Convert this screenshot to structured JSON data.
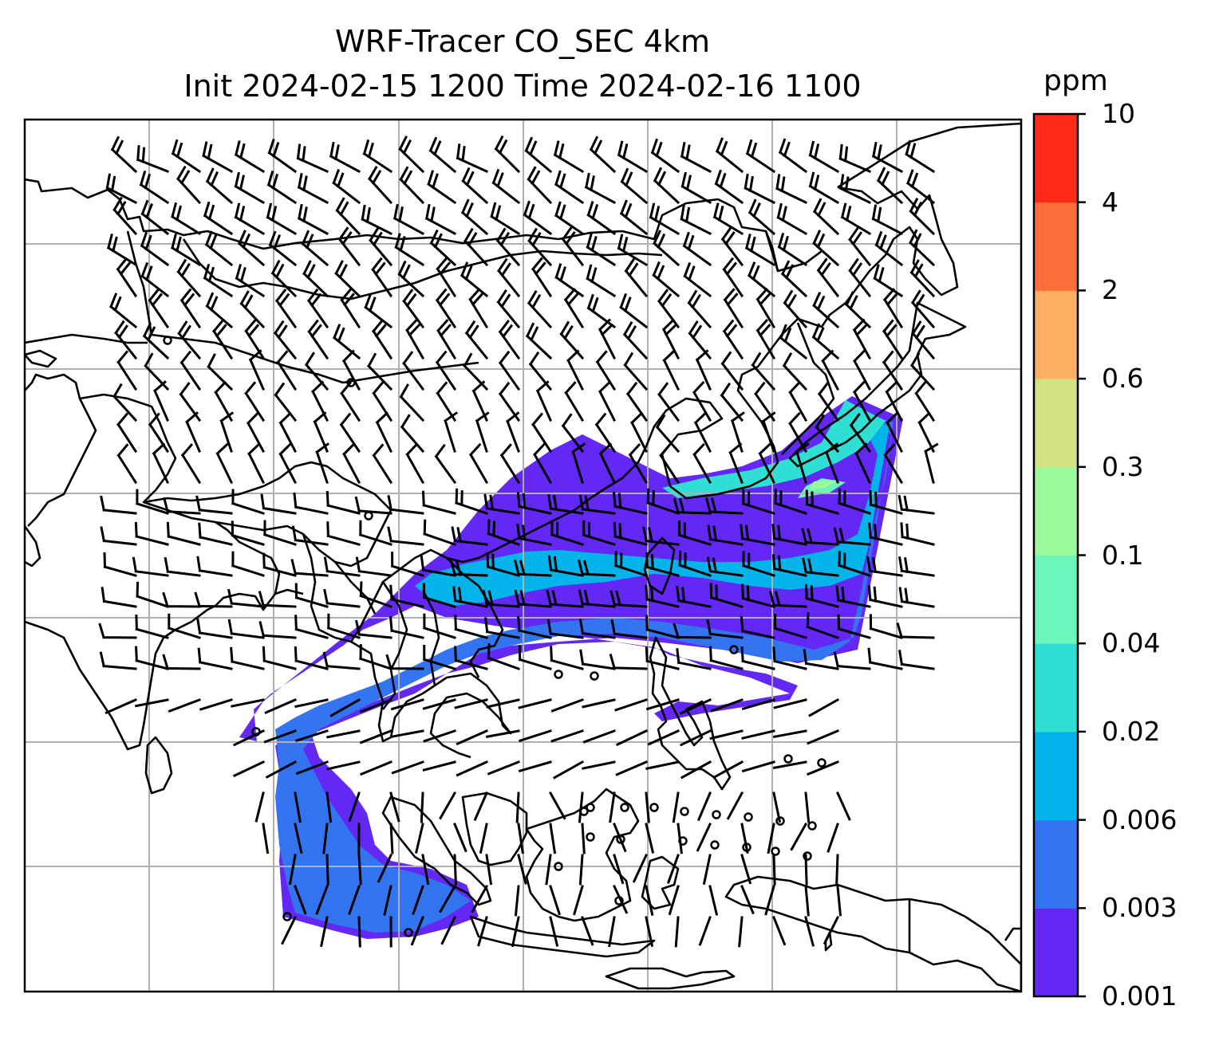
{
  "figure": {
    "title_line1": "WRF-Tracer CO_SEC 4km",
    "title_line2": "Init 2024-02-15 1200 Time 2024-02-16 1100"
  },
  "colorbar": {
    "units": "ppm",
    "levels": [
      "0.001",
      "0.003",
      "0.006",
      "0.02",
      "0.04",
      "0.1",
      "0.3",
      "0.6",
      "2",
      "4",
      "10"
    ],
    "colors": [
      "#6428f5",
      "#3374f0",
      "#02b4ea",
      "#30dfd4",
      "#6cf6bc",
      "#98fa98",
      "#d0e282",
      "#feae60",
      "#fe6f3a",
      "#ff2a18"
    ]
  },
  "map": {
    "gridlines": true,
    "coastlines": true,
    "tracer_field_colors": [
      "#6428f5",
      "#3374f0",
      "#02b4ea",
      "#30dfd4",
      "#6cf6bc",
      "#98fa98"
    ],
    "wind_barbs": true,
    "calm_markers": true
  }
}
